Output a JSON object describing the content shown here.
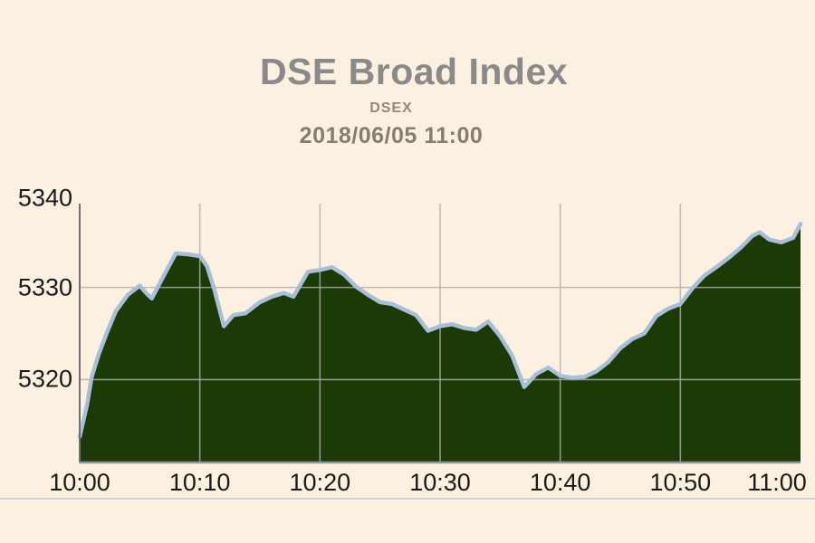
{
  "page": {
    "background_color": "#fcf0e1"
  },
  "header": {
    "title": "DSE Broad Index",
    "subtitle": "DSEX",
    "datetime": "2018/06/05  11:00"
  },
  "chart_data": {
    "type": "area",
    "title": "DSE Broad Index",
    "subtitle": "DSEX",
    "datetime_label": "2018/06/05  11:00",
    "xlabel": "",
    "ylabel": "",
    "x_unit": "minutes after 10:00",
    "xlim": [
      0,
      60
    ],
    "ylim": [
      5311.1,
      5339.1
    ],
    "x_tick_minutes": [
      0,
      10,
      20,
      30,
      40,
      50,
      60
    ],
    "x_tick_labels": [
      "10:00",
      "10:10",
      "10:20",
      "10:30",
      "10:40",
      "10:50",
      "11:00"
    ],
    "y_tick_values": [
      5320,
      5330,
      5340
    ],
    "y_tick_labels": [
      "5320",
      "5330",
      "5340"
    ],
    "grid_x_minutes": [
      10,
      20,
      30,
      40,
      50
    ],
    "grid_y_values": [
      5320,
      5330
    ],
    "grid_on": true,
    "legend": "none",
    "series": [
      {
        "name": "DSEX",
        "points": [
          [
            0,
            5313.8
          ],
          [
            0.6,
            5317.2
          ],
          [
            1,
            5320.3
          ],
          [
            1.6,
            5322.8
          ],
          [
            2.3,
            5325.2
          ],
          [
            3,
            5327.4
          ],
          [
            4,
            5329.2
          ],
          [
            5,
            5330.2
          ],
          [
            5.6,
            5329.3
          ],
          [
            6,
            5328.8
          ],
          [
            7,
            5331.3
          ],
          [
            8,
            5333.7
          ],
          [
            9,
            5333.6
          ],
          [
            10,
            5333.4
          ],
          [
            10.6,
            5332.3
          ],
          [
            11.2,
            5329.8
          ],
          [
            12,
            5325.8
          ],
          [
            12.8,
            5327.0
          ],
          [
            13.8,
            5327.2
          ],
          [
            15,
            5328.4
          ],
          [
            16,
            5329.0
          ],
          [
            17,
            5329.4
          ],
          [
            17.8,
            5329.0
          ],
          [
            19,
            5331.7
          ],
          [
            20,
            5331.9
          ],
          [
            21,
            5332.2
          ],
          [
            22,
            5331.4
          ],
          [
            23,
            5330.1
          ],
          [
            24,
            5329.2
          ],
          [
            25,
            5328.4
          ],
          [
            26,
            5328.2
          ],
          [
            27,
            5327.6
          ],
          [
            28,
            5327.0
          ],
          [
            29,
            5325.3
          ],
          [
            30,
            5325.8
          ],
          [
            31,
            5326.0
          ],
          [
            32,
            5325.6
          ],
          [
            33,
            5325.4
          ],
          [
            34,
            5326.3
          ],
          [
            35,
            5324.7
          ],
          [
            36,
            5322.6
          ],
          [
            37,
            5319.2
          ],
          [
            38,
            5320.6
          ],
          [
            39,
            5321.3
          ],
          [
            40,
            5320.4
          ],
          [
            41,
            5320.2
          ],
          [
            42,
            5320.3
          ],
          [
            43,
            5320.9
          ],
          [
            44,
            5321.9
          ],
          [
            45,
            5323.4
          ],
          [
            46,
            5324.4
          ],
          [
            47,
            5325.0
          ],
          [
            48,
            5326.9
          ],
          [
            49,
            5327.7
          ],
          [
            50,
            5328.2
          ],
          [
            51,
            5329.9
          ],
          [
            52,
            5331.3
          ],
          [
            53,
            5332.2
          ],
          [
            54,
            5333.2
          ],
          [
            55,
            5334.3
          ],
          [
            56,
            5335.6
          ],
          [
            56.6,
            5336.0
          ],
          [
            57.4,
            5335.2
          ],
          [
            58.4,
            5334.9
          ],
          [
            59.4,
            5335.4
          ],
          [
            60,
            5336.9
          ]
        ]
      }
    ],
    "colors": {
      "area_fill": "#1b3a06",
      "line": "#a7bfd9",
      "grid": "#afafaa",
      "y_axis": "#6f7076",
      "x_axis": "#8e959b",
      "tick_text": "#1a1a1a",
      "title_text": "#8a8a8a",
      "background": "#fcf0e1",
      "separator": "#ccd1d5"
    }
  }
}
